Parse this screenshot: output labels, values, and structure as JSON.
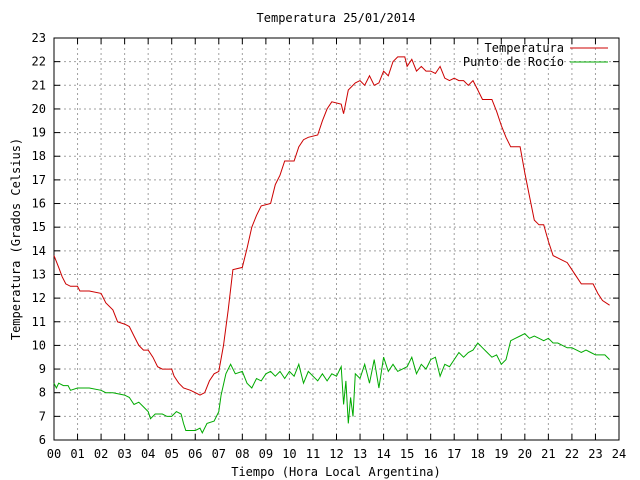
{
  "chart_data": {
    "type": "line",
    "title": "Temperatura 25/01/2014",
    "xlabel": "Tiempo (Hora Local Argentina)",
    "ylabel": "Temperatura (Grados Celsius)",
    "xlim": [
      0,
      24
    ],
    "ylim": [
      6,
      23
    ],
    "x_ticks": [
      "00",
      "01",
      "02",
      "03",
      "04",
      "05",
      "06",
      "07",
      "08",
      "09",
      "10",
      "11",
      "12",
      "13",
      "14",
      "15",
      "16",
      "17",
      "18",
      "19",
      "20",
      "21",
      "22",
      "23",
      "24"
    ],
    "y_ticks": [
      "6",
      "7",
      "8",
      "9",
      "10",
      "11",
      "12",
      "13",
      "14",
      "15",
      "16",
      "17",
      "18",
      "19",
      "20",
      "21",
      "22",
      "23"
    ],
    "grid": true,
    "legend_position": "top-right",
    "series": [
      {
        "name": "Temperatura",
        "color": "#cc0000",
        "points": [
          [
            0.0,
            13.8
          ],
          [
            0.2,
            13.3
          ],
          [
            0.35,
            12.9
          ],
          [
            0.5,
            12.6
          ],
          [
            0.7,
            12.5
          ],
          [
            1.0,
            12.5
          ],
          [
            1.1,
            12.3
          ],
          [
            1.5,
            12.3
          ],
          [
            2.0,
            12.2
          ],
          [
            2.2,
            11.8
          ],
          [
            2.5,
            11.5
          ],
          [
            2.7,
            11.0
          ],
          [
            3.0,
            10.9
          ],
          [
            3.2,
            10.8
          ],
          [
            3.4,
            10.4
          ],
          [
            3.6,
            10.0
          ],
          [
            3.8,
            9.8
          ],
          [
            4.0,
            9.8
          ],
          [
            4.2,
            9.5
          ],
          [
            4.4,
            9.1
          ],
          [
            4.6,
            9.0
          ],
          [
            5.0,
            9.0
          ],
          [
            5.1,
            8.7
          ],
          [
            5.3,
            8.4
          ],
          [
            5.5,
            8.2
          ],
          [
            5.8,
            8.1
          ],
          [
            6.0,
            8.0
          ],
          [
            6.2,
            7.9
          ],
          [
            6.4,
            8.0
          ],
          [
            6.6,
            8.5
          ],
          [
            6.8,
            8.8
          ],
          [
            7.0,
            8.9
          ],
          [
            7.2,
            10.0
          ],
          [
            7.4,
            11.5
          ],
          [
            7.6,
            13.2
          ],
          [
            8.0,
            13.3
          ],
          [
            8.2,
            14.1
          ],
          [
            8.4,
            15.0
          ],
          [
            8.6,
            15.5
          ],
          [
            8.8,
            15.9
          ],
          [
            9.2,
            16.0
          ],
          [
            9.4,
            16.8
          ],
          [
            9.6,
            17.2
          ],
          [
            9.8,
            17.8
          ],
          [
            10.2,
            17.8
          ],
          [
            10.4,
            18.4
          ],
          [
            10.6,
            18.7
          ],
          [
            10.8,
            18.8
          ],
          [
            11.2,
            18.9
          ],
          [
            11.4,
            19.5
          ],
          [
            11.6,
            20.0
          ],
          [
            11.8,
            20.3
          ],
          [
            12.2,
            20.2
          ],
          [
            12.3,
            19.8
          ],
          [
            12.5,
            20.8
          ],
          [
            12.8,
            21.1
          ],
          [
            13.0,
            21.2
          ],
          [
            13.2,
            21.0
          ],
          [
            13.4,
            21.4
          ],
          [
            13.6,
            21.0
          ],
          [
            13.8,
            21.1
          ],
          [
            14.0,
            21.6
          ],
          [
            14.2,
            21.4
          ],
          [
            14.4,
            22.0
          ],
          [
            14.6,
            22.2
          ],
          [
            14.9,
            22.2
          ],
          [
            15.0,
            21.8
          ],
          [
            15.2,
            22.1
          ],
          [
            15.4,
            21.6
          ],
          [
            15.6,
            21.8
          ],
          [
            15.8,
            21.6
          ],
          [
            16.0,
            21.6
          ],
          [
            16.2,
            21.5
          ],
          [
            16.4,
            21.8
          ],
          [
            16.6,
            21.3
          ],
          [
            16.8,
            21.2
          ],
          [
            17.0,
            21.3
          ],
          [
            17.2,
            21.2
          ],
          [
            17.4,
            21.2
          ],
          [
            17.6,
            21.0
          ],
          [
            17.8,
            21.2
          ],
          [
            18.0,
            20.8
          ],
          [
            18.2,
            20.4
          ],
          [
            18.6,
            20.4
          ],
          [
            18.8,
            19.9
          ],
          [
            19.0,
            19.3
          ],
          [
            19.2,
            18.8
          ],
          [
            19.4,
            18.4
          ],
          [
            19.8,
            18.4
          ],
          [
            20.0,
            17.3
          ],
          [
            20.2,
            16.3
          ],
          [
            20.4,
            15.3
          ],
          [
            20.6,
            15.1
          ],
          [
            20.8,
            15.1
          ],
          [
            21.0,
            14.4
          ],
          [
            21.2,
            13.8
          ],
          [
            21.4,
            13.7
          ],
          [
            21.6,
            13.6
          ],
          [
            21.8,
            13.5
          ],
          [
            22.0,
            13.2
          ],
          [
            22.2,
            12.9
          ],
          [
            22.4,
            12.6
          ],
          [
            22.9,
            12.6
          ],
          [
            23.1,
            12.2
          ],
          [
            23.3,
            11.9
          ],
          [
            23.6,
            11.7
          ]
        ]
      },
      {
        "name": "Punto de Rocío",
        "color": "#00aa00",
        "points": [
          [
            0.0,
            8.4
          ],
          [
            0.1,
            8.2
          ],
          [
            0.2,
            8.4
          ],
          [
            0.4,
            8.3
          ],
          [
            0.6,
            8.3
          ],
          [
            0.7,
            8.1
          ],
          [
            1.0,
            8.2
          ],
          [
            1.2,
            8.2
          ],
          [
            1.5,
            8.2
          ],
          [
            2.0,
            8.1
          ],
          [
            2.2,
            8.0
          ],
          [
            2.5,
            8.0
          ],
          [
            3.0,
            7.9
          ],
          [
            3.2,
            7.8
          ],
          [
            3.4,
            7.5
          ],
          [
            3.6,
            7.6
          ],
          [
            3.8,
            7.4
          ],
          [
            4.0,
            7.2
          ],
          [
            4.1,
            6.9
          ],
          [
            4.3,
            7.1
          ],
          [
            4.6,
            7.1
          ],
          [
            4.8,
            7.0
          ],
          [
            5.0,
            7.0
          ],
          [
            5.2,
            7.2
          ],
          [
            5.4,
            7.1
          ],
          [
            5.5,
            6.7
          ],
          [
            5.6,
            6.4
          ],
          [
            6.0,
            6.4
          ],
          [
            6.2,
            6.5
          ],
          [
            6.3,
            6.3
          ],
          [
            6.5,
            6.7
          ],
          [
            6.8,
            6.8
          ],
          [
            7.0,
            7.2
          ],
          [
            7.1,
            7.9
          ],
          [
            7.3,
            8.8
          ],
          [
            7.5,
            9.2
          ],
          [
            7.7,
            8.8
          ],
          [
            8.0,
            8.9
          ],
          [
            8.2,
            8.4
          ],
          [
            8.4,
            8.2
          ],
          [
            8.6,
            8.6
          ],
          [
            8.8,
            8.5
          ],
          [
            9.0,
            8.8
          ],
          [
            9.2,
            8.9
          ],
          [
            9.4,
            8.7
          ],
          [
            9.6,
            8.9
          ],
          [
            9.8,
            8.6
          ],
          [
            10.0,
            8.9
          ],
          [
            10.2,
            8.7
          ],
          [
            10.4,
            9.2
          ],
          [
            10.6,
            8.4
          ],
          [
            10.8,
            8.9
          ],
          [
            11.0,
            8.7
          ],
          [
            11.2,
            8.5
          ],
          [
            11.4,
            8.8
          ],
          [
            11.6,
            8.5
          ],
          [
            11.8,
            8.8
          ],
          [
            12.0,
            8.7
          ],
          [
            12.2,
            9.1
          ],
          [
            12.3,
            7.5
          ],
          [
            12.4,
            8.5
          ],
          [
            12.5,
            6.7
          ],
          [
            12.6,
            7.8
          ],
          [
            12.7,
            7.0
          ],
          [
            12.8,
            8.8
          ],
          [
            13.0,
            8.6
          ],
          [
            13.2,
            9.2
          ],
          [
            13.4,
            8.4
          ],
          [
            13.6,
            9.4
          ],
          [
            13.8,
            8.2
          ],
          [
            14.0,
            9.5
          ],
          [
            14.2,
            8.9
          ],
          [
            14.4,
            9.2
          ],
          [
            14.6,
            8.9
          ],
          [
            14.8,
            9.0
          ],
          [
            15.0,
            9.1
          ],
          [
            15.2,
            9.5
          ],
          [
            15.4,
            8.8
          ],
          [
            15.6,
            9.2
          ],
          [
            15.8,
            9.0
          ],
          [
            16.0,
            9.4
          ],
          [
            16.2,
            9.5
          ],
          [
            16.4,
            8.7
          ],
          [
            16.6,
            9.2
          ],
          [
            16.8,
            9.1
          ],
          [
            17.0,
            9.4
          ],
          [
            17.2,
            9.7
          ],
          [
            17.4,
            9.5
          ],
          [
            17.6,
            9.7
          ],
          [
            17.8,
            9.8
          ],
          [
            18.0,
            10.1
          ],
          [
            18.2,
            9.9
          ],
          [
            18.4,
            9.7
          ],
          [
            18.6,
            9.5
          ],
          [
            18.8,
            9.6
          ],
          [
            19.0,
            9.2
          ],
          [
            19.2,
            9.4
          ],
          [
            19.4,
            10.2
          ],
          [
            19.6,
            10.3
          ],
          [
            19.8,
            10.4
          ],
          [
            20.0,
            10.5
          ],
          [
            20.2,
            10.3
          ],
          [
            20.4,
            10.4
          ],
          [
            20.6,
            10.3
          ],
          [
            20.8,
            10.2
          ],
          [
            21.0,
            10.3
          ],
          [
            21.2,
            10.1
          ],
          [
            21.4,
            10.1
          ],
          [
            21.6,
            10.0
          ],
          [
            21.8,
            9.9
          ],
          [
            22.0,
            9.9
          ],
          [
            22.2,
            9.8
          ],
          [
            22.4,
            9.7
          ],
          [
            22.6,
            9.8
          ],
          [
            22.8,
            9.7
          ],
          [
            23.0,
            9.6
          ],
          [
            23.2,
            9.6
          ],
          [
            23.4,
            9.6
          ],
          [
            23.6,
            9.4
          ]
        ]
      }
    ]
  }
}
